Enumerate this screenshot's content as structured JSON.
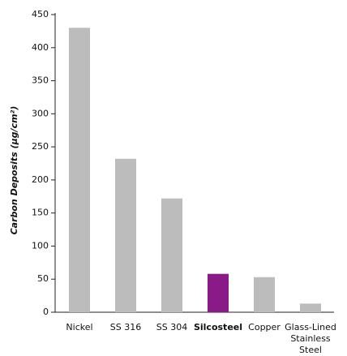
{
  "chart_data": {
    "type": "bar",
    "y_label": "Carbon Deposits (µg/cm²)",
    "categories": [
      "Nickel",
      "SS 316",
      "SS 304",
      "Silcosteel",
      "Copper",
      "Glass-Lined Stainless Steel"
    ],
    "values": [
      430,
      232,
      172,
      58,
      53,
      13
    ],
    "color": "#bcbcbc",
    "highlight": {
      "index": 3,
      "color": "#8b1a89"
    },
    "ylim": [
      0,
      450
    ],
    "yticks": [
      0,
      50,
      100,
      150,
      200,
      250,
      300,
      350,
      400,
      450
    ],
    "grid": false
  }
}
